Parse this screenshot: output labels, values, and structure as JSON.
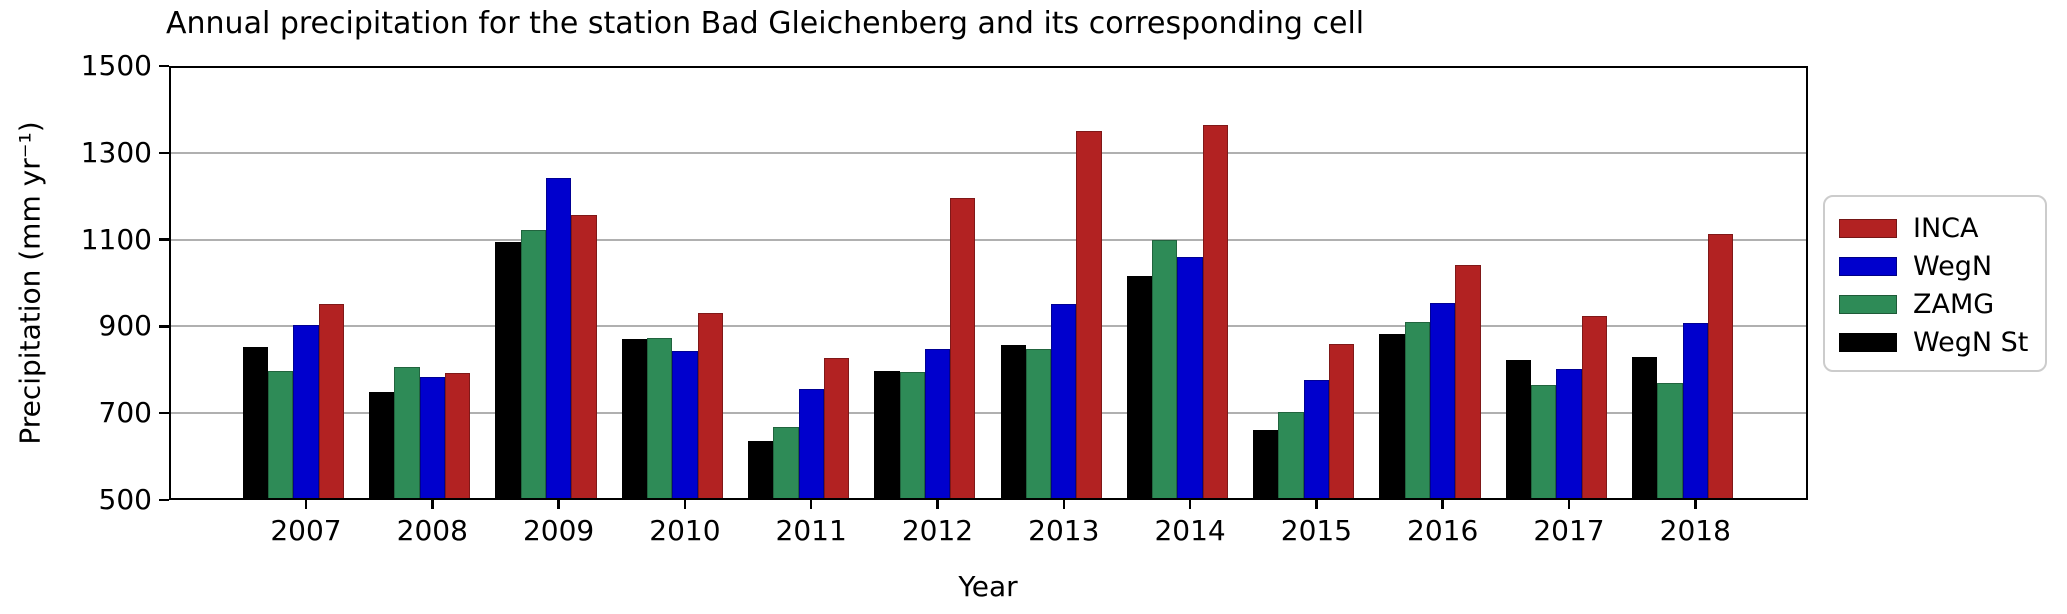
{
  "title": "Annual precipitation for the station Bad Gleichenberg and its corresponding cell",
  "axes": {
    "xlabel": "Year",
    "ylabel": "Precipitation (mm yr⁻¹)"
  },
  "legend": {
    "items": [
      {
        "label": "INCA",
        "color": "#B22222"
      },
      {
        "label": "WegN",
        "color": "#0000CD"
      },
      {
        "label": "ZAMG",
        "color": "#2E8B57"
      },
      {
        "label": "WegN St",
        "color": "#000000"
      }
    ]
  },
  "chart_data": {
    "type": "bar",
    "title": "Annual precipitation for the station Bad Gleichenberg and its corresponding cell",
    "xlabel": "Year",
    "ylabel": "Precipitation (mm yr⁻¹)",
    "ylim": [
      500,
      1500
    ],
    "yticks": [
      500,
      700,
      900,
      1100,
      1300,
      1500
    ],
    "grid": true,
    "legend_position": "outside-right",
    "categories": [
      "2007",
      "2008",
      "2009",
      "2010",
      "2011",
      "2012",
      "2013",
      "2014",
      "2015",
      "2016",
      "2017",
      "2018"
    ],
    "series": [
      {
        "name": "WegN St",
        "color": "#000000",
        "values": [
          853,
          750,
          1095,
          870,
          635,
          798,
          857,
          1017,
          662,
          883,
          822,
          830
        ]
      },
      {
        "name": "ZAMG",
        "color": "#2E8B57",
        "values": [
          797,
          806,
          1121,
          873,
          668,
          795,
          848,
          1100,
          702,
          910,
          765,
          770
        ]
      },
      {
        "name": "WegN",
        "color": "#0000CD",
        "values": [
          904,
          783,
          1243,
          843,
          755,
          848,
          951,
          1060,
          777,
          953,
          802,
          908
        ]
      },
      {
        "name": "INCA",
        "color": "#B22222",
        "values": [
          951,
          793,
          1156,
          930,
          827,
          1195,
          1350,
          1364,
          860,
          1042,
          925,
          1112
        ]
      }
    ]
  }
}
